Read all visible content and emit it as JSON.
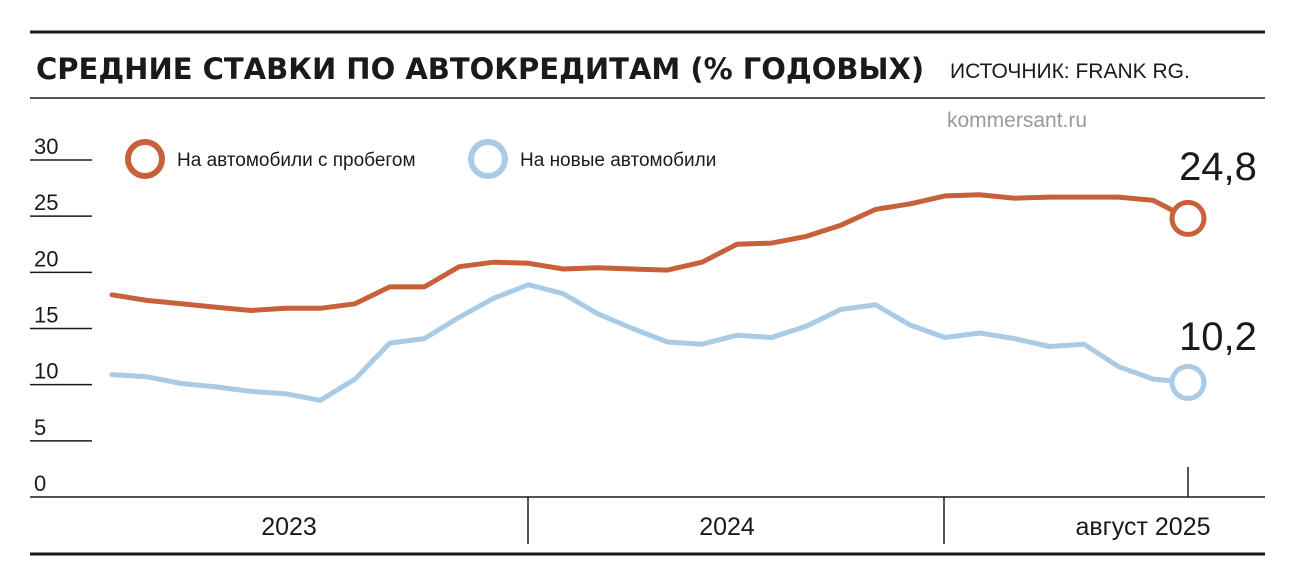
{
  "header": {
    "title": "СРЕДНИЕ СТАВКИ ПО АВТОКРЕДИТАМ (% ГОДОВЫХ)",
    "source": "ИСТОЧНИК: FRANK RG.",
    "brand": "kommersant.ru"
  },
  "colors": {
    "used": "#c8613a",
    "new": "#a9cbe6",
    "ink": "#1a1a1a"
  },
  "chart_data": {
    "type": "line",
    "title": "СРЕДНИЕ СТАВКИ ПО АВТОКРЕДИТАМ (% ГОДОВЫХ)",
    "ylabel": "",
    "xlabel": "",
    "ylim": [
      0,
      30
    ],
    "yticks": [
      "0",
      "5",
      "10",
      "15",
      "20",
      "25",
      "30"
    ],
    "x_groups": [
      "2023",
      "2024",
      "август 2025"
    ],
    "x": [
      "2023-01",
      "2023-02",
      "2023-03",
      "2023-04",
      "2023-05",
      "2023-06",
      "2023-07",
      "2023-08",
      "2023-09",
      "2023-10",
      "2023-11",
      "2023-12",
      "2024-01",
      "2024-02",
      "2024-03",
      "2024-04",
      "2024-05",
      "2024-06",
      "2024-07",
      "2024-08",
      "2024-09",
      "2024-10",
      "2024-11",
      "2024-12",
      "2025-01",
      "2025-02",
      "2025-03",
      "2025-04",
      "2025-05",
      "2025-06",
      "2025-07",
      "2025-08"
    ],
    "series": [
      {
        "name": "На автомобили с пробегом",
        "values": [
          18.0,
          17.5,
          17.2,
          16.9,
          16.6,
          16.8,
          16.8,
          17.2,
          18.7,
          18.7,
          20.5,
          20.9,
          20.8,
          20.3,
          20.4,
          20.3,
          20.2,
          20.9,
          22.5,
          22.6,
          23.2,
          24.2,
          25.6,
          26.1,
          26.8,
          26.9,
          26.6,
          26.7,
          26.7,
          26.7,
          26.4,
          24.8
        ],
        "end_label": "24,8"
      },
      {
        "name": "На новые автомобили",
        "values": [
          10.9,
          10.7,
          10.1,
          9.8,
          9.4,
          9.2,
          8.6,
          10.5,
          13.7,
          14.1,
          16.0,
          17.7,
          18.9,
          18.1,
          16.3,
          15.0,
          13.8,
          13.6,
          14.4,
          14.2,
          15.2,
          16.7,
          17.1,
          15.3,
          14.2,
          14.6,
          14.1,
          13.4,
          13.6,
          11.6,
          10.5,
          10.2
        ],
        "end_label": "10,2"
      }
    ],
    "legend": [
      "На автомобили с пробегом",
      "На новые автомобили"
    ],
    "legend_position": "top-left",
    "grid": false
  }
}
